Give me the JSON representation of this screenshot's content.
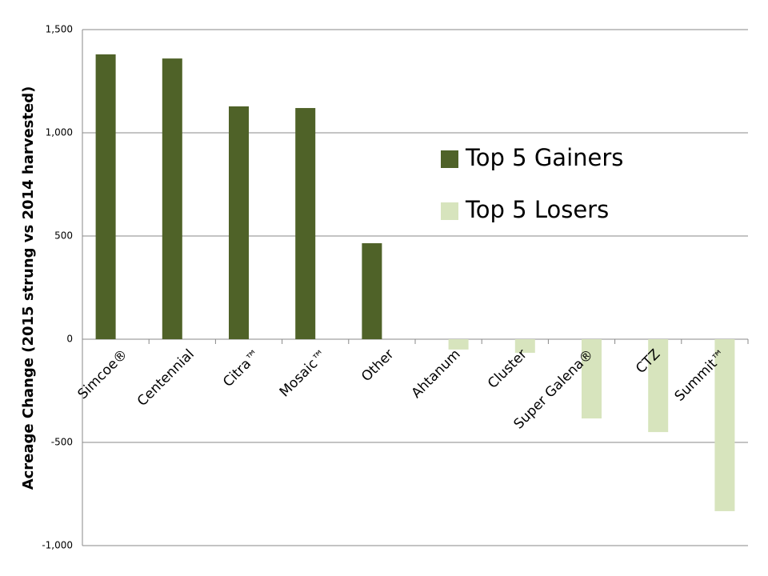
{
  "chart_data": {
    "type": "bar",
    "y_axis_title": "Acreage Change (2015 strung vs 2014 harvested)",
    "categories": [
      "Simcoe®",
      "Centennial",
      "Citra™",
      "Mosaic™",
      "Other",
      "Ahtanum",
      "Cluster",
      "Super Galena®",
      "CTZ",
      "Summit™"
    ],
    "series": [
      {
        "name": "Top 5 Gainers",
        "color": "#4f6228",
        "values": [
          1380,
          1360,
          1128,
          1120,
          465,
          null,
          null,
          null,
          null,
          null
        ]
      },
      {
        "name": "Top 5 Losers",
        "color": "#d7e4bd",
        "values": [
          null,
          null,
          null,
          null,
          null,
          -50,
          -66,
          -384,
          -450,
          -833
        ]
      }
    ],
    "ylim": [
      -1000,
      1500
    ],
    "yticks": [
      {
        "value": -1000,
        "label": "-1,000"
      },
      -500,
      0,
      500,
      {
        "value": 1000,
        "label": "1,000"
      },
      {
        "value": 1500,
        "label": "1,500"
      }
    ],
    "grid": true
  }
}
